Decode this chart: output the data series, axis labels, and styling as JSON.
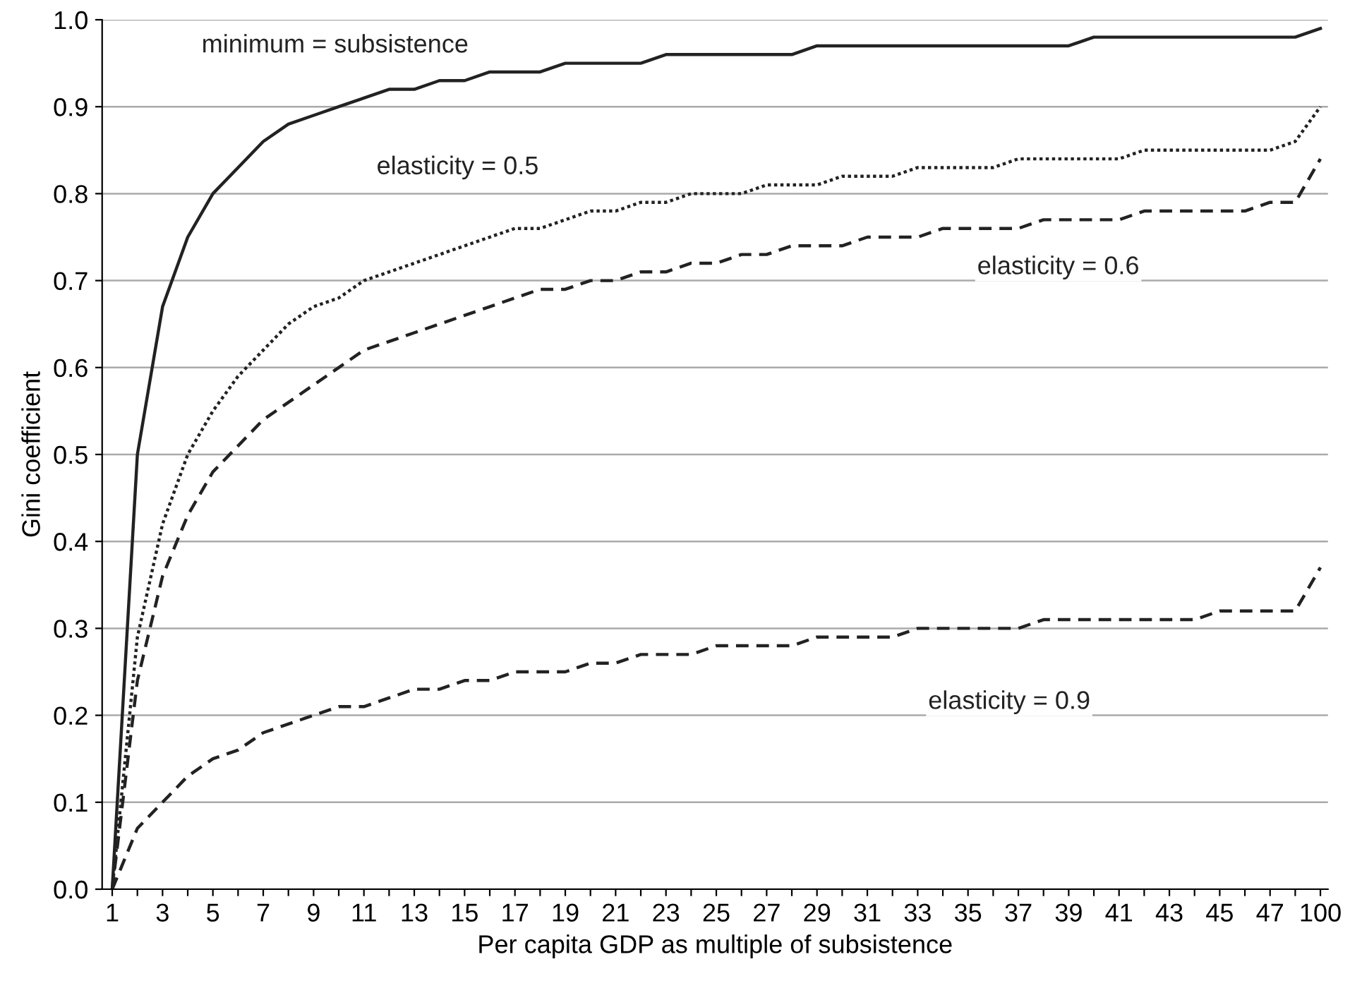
{
  "chart_data": {
    "type": "line",
    "xlabel": "Per capita GDP as multiple of subsistence",
    "ylabel": "Gini coefficient",
    "categories": [
      "1",
      null,
      "3",
      null,
      "5",
      null,
      "7",
      null,
      "9",
      null,
      "11",
      null,
      "13",
      null,
      "15",
      null,
      "17",
      null,
      "19",
      null,
      "21",
      null,
      "23",
      null,
      "25",
      null,
      "27",
      null,
      "29",
      null,
      "31",
      null,
      "33",
      null,
      "35",
      null,
      "37",
      null,
      "39",
      null,
      "41",
      null,
      "43",
      null,
      "45",
      null,
      "47",
      null,
      "100"
    ],
    "ylim": [
      0,
      1
    ],
    "yticks": [
      {
        "value": 0,
        "label": "0.0"
      },
      {
        "value": 0.1,
        "label": "0.1"
      },
      {
        "value": 0.2,
        "label": "0.2"
      },
      {
        "value": 0.3,
        "label": "0.3"
      },
      {
        "value": 0.4,
        "label": "0.4"
      },
      {
        "value": 0.5,
        "label": "0.5"
      },
      {
        "value": 0.6,
        "label": "0.6"
      },
      {
        "value": 0.7,
        "label": "0.7"
      },
      {
        "value": 0.8,
        "label": "0.8"
      },
      {
        "value": 0.9,
        "label": "0.9"
      },
      {
        "value": 1,
        "label": "1.0"
      }
    ],
    "grid": "y",
    "marker": "none",
    "series": [
      {
        "name": "minimum = subsistence",
        "color": "#222222",
        "line_style": "solid",
        "values": [
          0,
          0.5,
          0.67,
          0.75,
          0.8,
          0.83,
          0.86,
          0.88,
          0.89,
          0.9,
          0.91,
          0.92,
          0.92,
          0.93,
          0.93,
          0.94,
          0.94,
          0.94,
          0.95,
          0.95,
          0.95,
          0.95,
          0.96,
          0.96,
          0.96,
          0.96,
          0.96,
          0.96,
          0.97,
          0.97,
          0.97,
          0.97,
          0.97,
          0.97,
          0.97,
          0.97,
          0.97,
          0.97,
          0.97,
          0.98,
          0.98,
          0.98,
          0.98,
          0.98,
          0.98,
          0.98,
          0.98,
          0.98,
          0.99
        ]
      },
      {
        "name": "elasticity = 0.5",
        "color": "#222222",
        "line_style": "dotted",
        "values": [
          0,
          0.29,
          0.42,
          0.5,
          0.55,
          0.59,
          0.62,
          0.65,
          0.67,
          0.68,
          0.7,
          0.71,
          0.72,
          0.73,
          0.74,
          0.75,
          0.76,
          0.76,
          0.77,
          0.78,
          0.78,
          0.79,
          0.79,
          0.8,
          0.8,
          0.8,
          0.81,
          0.81,
          0.81,
          0.82,
          0.82,
          0.82,
          0.83,
          0.83,
          0.83,
          0.83,
          0.84,
          0.84,
          0.84,
          0.84,
          0.84,
          0.85,
          0.85,
          0.85,
          0.85,
          0.85,
          0.85,
          0.86,
          0.9
        ]
      },
      {
        "name": "elasticity = 0.6",
        "color": "#222222",
        "line_style": "dashed",
        "values": [
          0,
          0.24,
          0.36,
          0.43,
          0.48,
          0.51,
          0.54,
          0.56,
          0.58,
          0.6,
          0.62,
          0.63,
          0.64,
          0.65,
          0.66,
          0.67,
          0.68,
          0.69,
          0.69,
          0.7,
          0.7,
          0.71,
          0.71,
          0.72,
          0.72,
          0.73,
          0.73,
          0.74,
          0.74,
          0.74,
          0.75,
          0.75,
          0.75,
          0.76,
          0.76,
          0.76,
          0.76,
          0.77,
          0.77,
          0.77,
          0.77,
          0.78,
          0.78,
          0.78,
          0.78,
          0.78,
          0.79,
          0.79,
          0.84
        ]
      },
      {
        "name": "elasticity = 0.9",
        "color": "#222222",
        "line_style": "dashed",
        "values": [
          0,
          0.07,
          0.1,
          0.13,
          0.15,
          0.16,
          0.18,
          0.19,
          0.2,
          0.21,
          0.21,
          0.22,
          0.23,
          0.23,
          0.24,
          0.24,
          0.25,
          0.25,
          0.25,
          0.26,
          0.26,
          0.27,
          0.27,
          0.27,
          0.28,
          0.28,
          0.28,
          0.28,
          0.29,
          0.29,
          0.29,
          0.29,
          0.3,
          0.3,
          0.3,
          0.3,
          0.3,
          0.31,
          0.31,
          0.31,
          0.31,
          0.31,
          0.31,
          0.31,
          0.32,
          0.32,
          0.32,
          0.32,
          0.37
        ]
      }
    ]
  }
}
